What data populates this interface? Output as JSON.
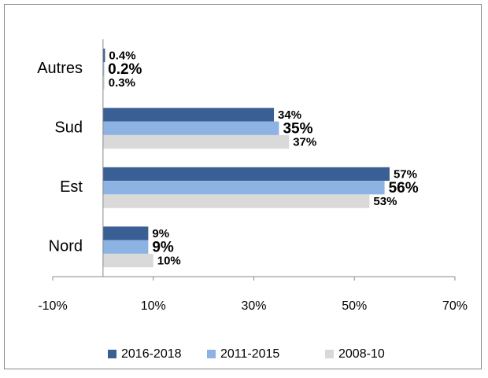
{
  "chart_data": {
    "type": "bar",
    "orientation": "horizontal",
    "categories": [
      "Autres",
      "Sud",
      "Est",
      "Nord"
    ],
    "series": [
      {
        "name": "2016-2018",
        "color": "#3a5f95",
        "values": [
          0.4,
          34,
          57,
          9
        ],
        "value_labels": [
          "0.4%",
          "34%",
          "57%",
          "9%"
        ]
      },
      {
        "name": "2011-2015",
        "color": "#8db3e2",
        "values": [
          0.2,
          35,
          56,
          9
        ],
        "value_labels": [
          "0.2%",
          "35%",
          "56%",
          "9%"
        ]
      },
      {
        "name": "2008-10",
        "color": "#d9d9d9",
        "values": [
          0.3,
          37,
          53,
          10
        ],
        "value_labels": [
          "0.3%",
          "37%",
          "53%",
          "10%"
        ]
      }
    ],
    "xlim": [
      -10,
      70
    ],
    "xticks": [
      {
        "value": -10,
        "label": "-10%"
      },
      {
        "value": 10,
        "label": "10%"
      },
      {
        "value": 30,
        "label": "30%"
      },
      {
        "value": 50,
        "label": "50%"
      },
      {
        "value": 70,
        "label": "70%"
      }
    ],
    "legend": "bottom"
  }
}
